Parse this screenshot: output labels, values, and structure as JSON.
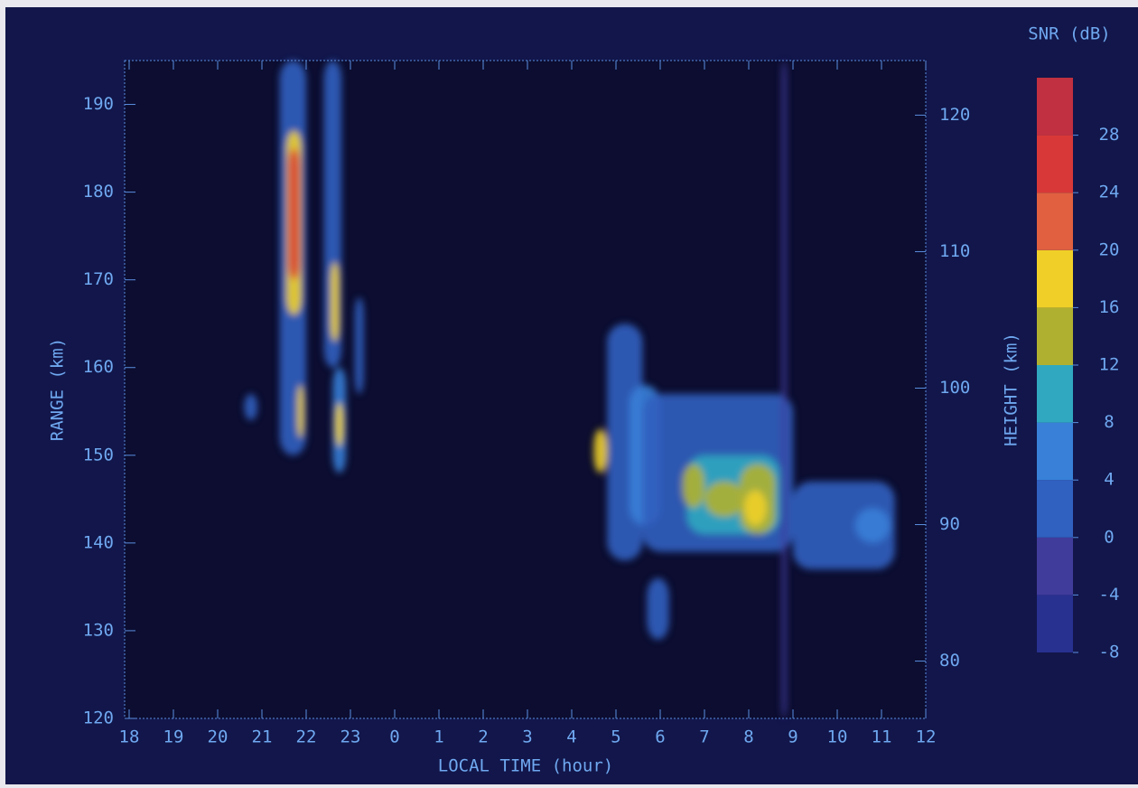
{
  "chart_data": {
    "type": "heatmap",
    "x_label": "LOCAL TIME (hour)",
    "y_label": "RANGE (km)",
    "y2_label": "HEIGHT (km)",
    "colorbar_label": "SNR (dB)",
    "xlim": [
      18,
      36
    ],
    "xticks": [
      18,
      19,
      20,
      21,
      22,
      23,
      {
        "value": 24,
        "label": "0"
      },
      {
        "value": 25,
        "label": "1"
      },
      {
        "value": 26,
        "label": "2"
      },
      {
        "value": 27,
        "label": "3"
      },
      {
        "value": 28,
        "label": "4"
      },
      {
        "value": 29,
        "label": "5"
      },
      {
        "value": 30,
        "label": "6"
      },
      {
        "value": 31,
        "label": "7"
      },
      {
        "value": 32,
        "label": "8"
      },
      {
        "value": 33,
        "label": "9"
      },
      {
        "value": 34,
        "label": "10"
      },
      {
        "value": 35,
        "label": "11"
      },
      {
        "value": 36,
        "label": "12"
      }
    ],
    "ylim": [
      120,
      195
    ],
    "yticks": [
      120,
      130,
      140,
      150,
      160,
      170,
      180,
      190
    ],
    "y2lim": [
      75.8,
      124
    ],
    "y2ticks": [
      80,
      90,
      100,
      110,
      120
    ],
    "clim": [
      -8,
      32
    ],
    "cticks": [
      -8,
      -4,
      0,
      4,
      8,
      12,
      16,
      20,
      24,
      28
    ],
    "colorscale": [
      "#283090",
      "#403c9c",
      "#3060c0",
      "#3880d8",
      "#30a8c0",
      "#b0b030",
      "#f0d028",
      "#e06040",
      "#d83838",
      "#c03040"
    ],
    "echoes": [
      {
        "x": [
          21.4,
          22.0
        ],
        "y": [
          150,
          195
        ],
        "snr": 2
      },
      {
        "x": [
          21.55,
          21.9
        ],
        "y": [
          166,
          187
        ],
        "snr": 18
      },
      {
        "x": [
          21.6,
          21.85
        ],
        "y": [
          170,
          185
        ],
        "snr": 26
      },
      {
        "x": [
          22.4,
          22.8
        ],
        "y": [
          160,
          195
        ],
        "snr": 2
      },
      {
        "x": [
          22.55,
          22.75
        ],
        "y": [
          163,
          172
        ],
        "snr": 18
      },
      {
        "x": [
          22.6,
          22.9
        ],
        "y": [
          148,
          160
        ],
        "snr": 4
      },
      {
        "x": [
          22.65,
          22.85
        ],
        "y": [
          151,
          156
        ],
        "snr": 17
      },
      {
        "x": [
          21.8,
          21.95
        ],
        "y": [
          152,
          158
        ],
        "snr": 17
      },
      {
        "x": [
          23.1,
          23.3
        ],
        "y": [
          157,
          168
        ],
        "snr": 2
      },
      {
        "x": [
          20.6,
          20.9
        ],
        "y": [
          154,
          157
        ],
        "snr": 2
      },
      {
        "x": [
          28.8,
          29.6
        ],
        "y": [
          138,
          165
        ],
        "snr": 0
      },
      {
        "x": [
          29.3,
          30.0
        ],
        "y": [
          142,
          158
        ],
        "snr": 4
      },
      {
        "x": [
          28.5,
          28.8
        ],
        "y": [
          148,
          153
        ],
        "snr": 16
      },
      {
        "x": [
          29.6,
          33.0
        ],
        "y": [
          139,
          157
        ],
        "snr": 2
      },
      {
        "x": [
          30.6,
          32.7
        ],
        "y": [
          141,
          150
        ],
        "snr": 8
      },
      {
        "x": [
          30.5,
          31.0
        ],
        "y": [
          144,
          149
        ],
        "snr": 14
      },
      {
        "x": [
          31.0,
          31.9
        ],
        "y": [
          143,
          147
        ],
        "snr": 13
      },
      {
        "x": [
          31.8,
          32.6
        ],
        "y": [
          141,
          149
        ],
        "snr": 15
      },
      {
        "x": [
          31.9,
          32.4
        ],
        "y": [
          142,
          146
        ],
        "snr": 18
      },
      {
        "x": [
          33.0,
          35.3
        ],
        "y": [
          137,
          147
        ],
        "snr": 0
      },
      {
        "x": [
          34.4,
          35.2
        ],
        "y": [
          140,
          144
        ],
        "snr": 6
      },
      {
        "x": [
          29.7,
          30.2
        ],
        "y": [
          129,
          136
        ],
        "snr": 1
      },
      {
        "x": [
          32.75,
          32.85
        ],
        "y": [
          120,
          195
        ],
        "snr": -3
      }
    ]
  }
}
